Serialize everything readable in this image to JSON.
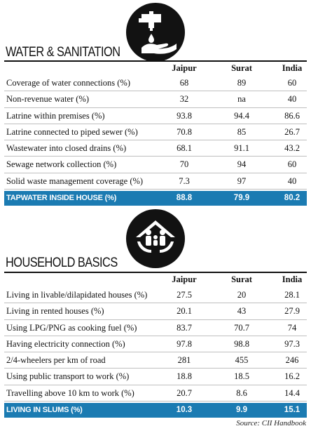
{
  "columns": [
    "Jaipur",
    "Surat",
    "India"
  ],
  "water": {
    "title": "WATER & SANITATION",
    "icon": "water-tap-hand-icon",
    "rows": [
      {
        "label": "Coverage of water connections (%)",
        "values": [
          "68",
          "89",
          "60"
        ]
      },
      {
        "label": "Non-revenue water (%)",
        "values": [
          "32",
          "na",
          "40"
        ]
      },
      {
        "label": "Latrine within premises (%)",
        "values": [
          "93.8",
          "94.4",
          "86.6"
        ]
      },
      {
        "label": "Latrine connected to piped sewer (%)",
        "values": [
          "70.8",
          "85",
          "26.7"
        ]
      },
      {
        "label": "Wastewater into closed drains (%)",
        "values": [
          "68.1",
          "91.1",
          "43.2"
        ]
      },
      {
        "label": "Sewage network collection (%)",
        "values": [
          "70",
          "94",
          "60"
        ]
      },
      {
        "label": "Solid waste management coverage (%)",
        "values": [
          "7.3",
          "97",
          "40"
        ]
      }
    ],
    "highlight": {
      "label": "TAPWATER INSIDE HOUSE (%)",
      "values": [
        "88.8",
        "79.9",
        "80.2"
      ]
    }
  },
  "household": {
    "title": "HOUSEHOLD BASICS",
    "icon": "family-house-hands-icon",
    "rows": [
      {
        "label": "Living in livable/dilapidated houses (%)",
        "values": [
          "27.5",
          "20",
          "28.1"
        ]
      },
      {
        "label": "Living in rented houses (%)",
        "values": [
          "20.1",
          "43",
          "27.9"
        ]
      },
      {
        "label": "Using LPG/PNG as cooking fuel (%)",
        "values": [
          "83.7",
          "70.7",
          "74"
        ]
      },
      {
        "label": "Having electricity connection (%)",
        "values": [
          "97.8",
          "98.8",
          "97.3"
        ]
      },
      {
        "label": "2/4-wheelers per km of road",
        "values": [
          "281",
          "455",
          "246"
        ]
      },
      {
        "label": "Using public transport to work (%)",
        "values": [
          "18.8",
          "18.5",
          "16.2"
        ]
      },
      {
        "label": "Travelling above 10 km to work (%)",
        "values": [
          "20.7",
          "8.6",
          "14.4"
        ]
      }
    ],
    "highlight": {
      "label": "LIVING IN SLUMS (%)",
      "values": [
        "10.3",
        "9.9",
        "15.1"
      ]
    }
  },
  "colors": {
    "highlight": "#1b7bb2",
    "icon_bg": "#121212"
  },
  "source": "Source: CII Handbook"
}
